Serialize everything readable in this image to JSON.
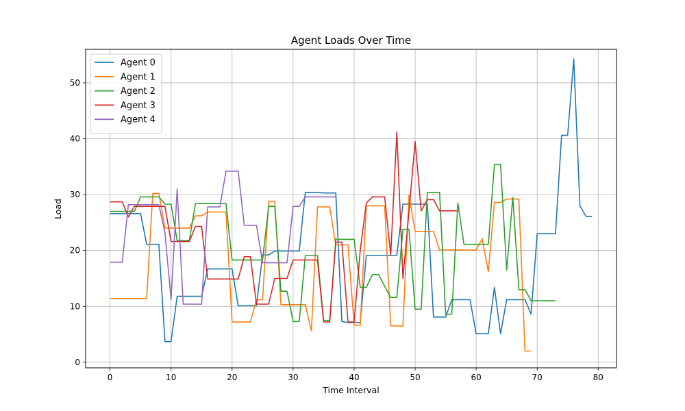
{
  "chart_data": {
    "type": "line",
    "title": "Agent Loads Over Time",
    "xlabel": "Time Interval",
    "ylabel": "Load",
    "xlim": [
      -4,
      83
    ],
    "ylim": [
      -1,
      56
    ],
    "xticks": [
      0,
      10,
      20,
      30,
      40,
      50,
      60,
      70,
      80
    ],
    "yticks": [
      0,
      10,
      20,
      30,
      40,
      50
    ],
    "grid": true,
    "legend_position": "top-left",
    "series": [
      {
        "name": "Agent 0",
        "color": "#1f77b4",
        "x": [
          0,
          1,
          2,
          3,
          4,
          5,
          6,
          7,
          8,
          9,
          10,
          11,
          12,
          13,
          14,
          15,
          16,
          17,
          18,
          19,
          20,
          21,
          22,
          23,
          24,
          25,
          26,
          27,
          28,
          29,
          30,
          31,
          32,
          33,
          34,
          35,
          36,
          37,
          38,
          39,
          40,
          41,
          42,
          43,
          44,
          45,
          46,
          47,
          48,
          49,
          50,
          51,
          52,
          53,
          54,
          55,
          56,
          57,
          58,
          59,
          60,
          61,
          62,
          63,
          64,
          65,
          66,
          67,
          68,
          69,
          70,
          71,
          72,
          73,
          74,
          75,
          76,
          77,
          78,
          79
        ],
        "y": [
          26.6,
          26.6,
          26.6,
          26.6,
          26.6,
          26.6,
          21.1,
          21.1,
          21.1,
          3.7,
          3.7,
          11.8,
          11.8,
          11.8,
          11.8,
          11.8,
          16.7,
          16.7,
          16.7,
          16.7,
          16.7,
          10.1,
          10.1,
          10.1,
          10.1,
          19.2,
          19.2,
          19.9,
          19.9,
          19.9,
          19.9,
          19.9,
          30.4,
          30.4,
          30.4,
          30.3,
          30.3,
          30.3,
          7.3,
          7.1,
          7.1,
          7.1,
          19.1,
          19.1,
          19.1,
          19.1,
          19.1,
          19.1,
          28.3,
          28.3,
          28.3,
          28.3,
          28.3,
          8.1,
          8.1,
          8.1,
          11.2,
          11.2,
          11.2,
          11.2,
          5.1,
          5.1,
          5.1,
          13.4,
          5.1,
          11.2,
          11.2,
          11.2,
          11.2,
          8.6,
          23.0,
          23.0,
          23.0,
          23.0,
          40.6,
          40.6,
          54.3,
          28.0,
          26.1,
          26.1
        ]
      },
      {
        "name": "Agent 1",
        "color": "#ff7f0e",
        "x": [
          0,
          1,
          2,
          3,
          4,
          5,
          6,
          7,
          8,
          9,
          10,
          11,
          12,
          13,
          14,
          15,
          16,
          17,
          18,
          19,
          20,
          21,
          22,
          23,
          24,
          25,
          26,
          27,
          28,
          29,
          30,
          31,
          32,
          33,
          34,
          35,
          36,
          37,
          38,
          39,
          40,
          41,
          42,
          43,
          44,
          45,
          46,
          47,
          48,
          49,
          50,
          51,
          52,
          53,
          54,
          55,
          56,
          57,
          58,
          59,
          60,
          61,
          62,
          63,
          64,
          65,
          66,
          67,
          68,
          69
        ],
        "y": [
          11.4,
          11.4,
          11.4,
          11.4,
          11.4,
          11.4,
          11.4,
          30.2,
          30.2,
          24.0,
          24.0,
          24.0,
          24.0,
          24.0,
          26.2,
          26.2,
          26.9,
          26.9,
          26.9,
          26.9,
          7.2,
          7.2,
          7.2,
          7.2,
          11.2,
          11.2,
          28.8,
          28.8,
          10.3,
          10.3,
          10.3,
          10.3,
          10.3,
          5.6,
          27.8,
          27.8,
          27.8,
          21.0,
          21.0,
          21.0,
          6.6,
          6.6,
          28.0,
          28.0,
          28.0,
          28.0,
          6.5,
          6.5,
          6.5,
          29.9,
          23.4,
          23.4,
          23.4,
          23.4,
          20.1,
          20.1,
          20.1,
          20.1,
          20.1,
          20.1,
          20.1,
          22.1,
          16.2,
          28.6,
          28.6,
          29.2,
          29.2,
          29.2,
          2.0,
          2.0
        ]
      },
      {
        "name": "Agent 2",
        "color": "#2ca02c",
        "x": [
          0,
          1,
          2,
          3,
          4,
          5,
          6,
          7,
          8,
          9,
          10,
          11,
          12,
          13,
          14,
          15,
          16,
          17,
          18,
          19,
          20,
          21,
          22,
          23,
          24,
          25,
          26,
          27,
          28,
          29,
          30,
          31,
          32,
          33,
          34,
          35,
          36,
          37,
          38,
          39,
          40,
          41,
          42,
          43,
          44,
          45,
          46,
          47,
          48,
          49,
          50,
          51,
          52,
          53,
          54,
          55,
          56,
          57,
          58,
          59,
          60,
          61,
          62,
          63,
          64,
          65,
          66,
          67,
          68,
          69,
          70,
          71,
          72,
          73
        ],
        "y": [
          27.0,
          27.0,
          27.0,
          27.0,
          27.0,
          29.6,
          29.6,
          29.6,
          29.6,
          28.3,
          28.3,
          21.8,
          21.8,
          21.8,
          28.4,
          28.4,
          28.4,
          28.4,
          28.4,
          28.4,
          18.3,
          18.3,
          18.3,
          18.3,
          18.3,
          18.3,
          27.9,
          27.9,
          12.7,
          12.7,
          7.3,
          7.3,
          19.1,
          19.1,
          19.1,
          7.5,
          7.5,
          22.0,
          22.0,
          22.0,
          22.0,
          13.4,
          13.4,
          15.7,
          15.7,
          13.6,
          11.6,
          11.6,
          23.8,
          23.8,
          9.5,
          9.5,
          30.4,
          30.4,
          30.4,
          8.6,
          8.6,
          28.5,
          21.1,
          21.1,
          21.1,
          21.1,
          21.1,
          35.4,
          35.4,
          16.5,
          29.5,
          13.0,
          13.0,
          11.0,
          11.0,
          11.0,
          11.0,
          11.0
        ]
      },
      {
        "name": "Agent 3",
        "color": "#d62728",
        "x": [
          0,
          1,
          2,
          3,
          4,
          5,
          6,
          7,
          8,
          9,
          10,
          11,
          12,
          13,
          14,
          15,
          16,
          17,
          18,
          19,
          20,
          21,
          22,
          23,
          24,
          25,
          26,
          27,
          28,
          29,
          30,
          31,
          32,
          33,
          34,
          35,
          36,
          37,
          38,
          39,
          40,
          41,
          42,
          43,
          44,
          45,
          46,
          47,
          48,
          49,
          50,
          51,
          52,
          53,
          54,
          55,
          56,
          57
        ],
        "y": [
          28.7,
          28.7,
          28.7,
          26.0,
          27.9,
          27.9,
          27.9,
          27.9,
          27.9,
          27.9,
          21.6,
          21.6,
          21.6,
          21.6,
          24.3,
          24.3,
          14.9,
          14.9,
          14.9,
          14.9,
          14.9,
          14.9,
          18.9,
          18.9,
          10.4,
          10.4,
          10.4,
          15.0,
          15.0,
          15.0,
          18.3,
          18.3,
          18.3,
          18.3,
          18.3,
          7.2,
          7.2,
          21.5,
          21.5,
          7.2,
          7.2,
          20.0,
          28.5,
          29.6,
          29.6,
          29.6,
          19.2,
          41.2,
          15.0,
          27.0,
          39.5,
          27.1,
          29.1,
          29.1,
          27.1,
          27.1,
          27.1,
          27.1
        ]
      },
      {
        "name": "Agent 4",
        "color": "#9467bd",
        "x": [
          0,
          1,
          2,
          3,
          4,
          5,
          6,
          7,
          8,
          9,
          10,
          11,
          12,
          13,
          14,
          15,
          16,
          17,
          18,
          19,
          20,
          21,
          22,
          23,
          24,
          25,
          26,
          27,
          28,
          29,
          30,
          31,
          32,
          33,
          34,
          35,
          36,
          37
        ],
        "y": [
          17.9,
          17.9,
          17.9,
          28.2,
          28.2,
          28.2,
          28.2,
          28.2,
          28.2,
          23.2,
          11.2,
          31.0,
          10.4,
          10.4,
          10.4,
          10.4,
          27.8,
          27.8,
          27.8,
          34.2,
          34.2,
          34.2,
          24.5,
          24.5,
          24.5,
          17.8,
          17.8,
          17.8,
          17.8,
          17.8,
          27.9,
          27.9,
          29.6,
          29.6,
          29.6,
          29.6,
          29.6,
          29.6
        ]
      }
    ]
  }
}
